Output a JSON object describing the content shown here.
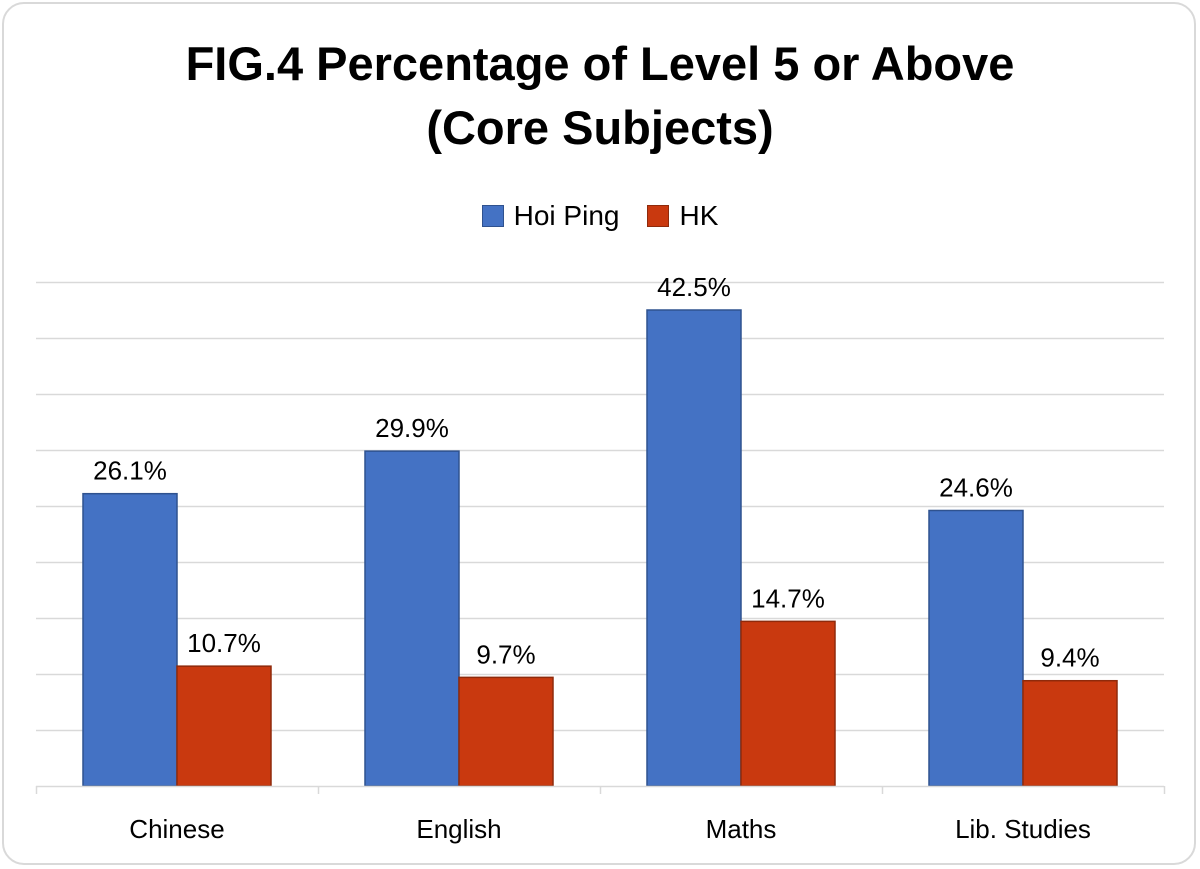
{
  "chart_data": {
    "type": "bar",
    "title_lines": [
      "FIG.4 Percentage of Level 5 or Above",
      "(Core Subjects)"
    ],
    "categories": [
      "Chinese",
      "English",
      "Maths",
      "Lib. Studies"
    ],
    "series": [
      {
        "name": "Hoi Ping",
        "values": [
          26.1,
          29.9,
          42.5,
          24.6
        ],
        "labels": [
          "26.1%",
          "29.9%",
          "42.5%",
          "24.6%"
        ],
        "color": "#4472c4"
      },
      {
        "name": "HK",
        "values": [
          10.7,
          9.7,
          14.7,
          9.4
        ],
        "labels": [
          "10.7%",
          "9.7%",
          "14.7%",
          "9.4%"
        ],
        "color": "#c9390f"
      }
    ],
    "ylim": [
      0,
      45
    ],
    "y_gridline_step": 5,
    "grid": true,
    "legend_position": "top-center",
    "xlabel": "",
    "ylabel": ""
  }
}
